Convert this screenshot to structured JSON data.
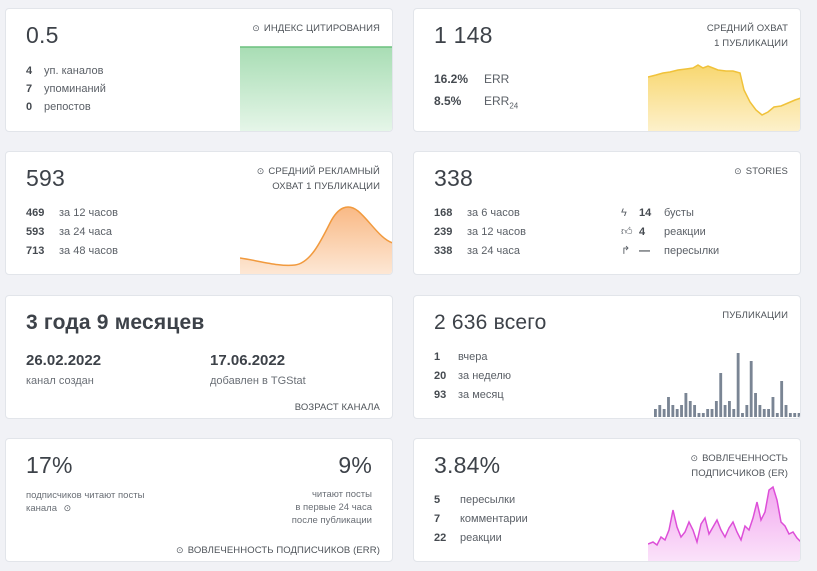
{
  "citation": {
    "value": "0.5",
    "label": "ИНДЕКС ЦИТИРОВАНИЯ",
    "rows": [
      {
        "num": "4",
        "text": "уп. каналов"
      },
      {
        "num": "7",
        "text": "упоминаний"
      },
      {
        "num": "0",
        "text": "репостов"
      }
    ],
    "colors": {
      "fill": "#c9eccf",
      "line": "#6cc17e"
    }
  },
  "avg_reach": {
    "value": "1 148",
    "label_line1": "СРЕДНИЙ ОХВАТ",
    "label_line2": "1 ПУБЛИКАЦИИ",
    "rows": [
      {
        "num": "16.2%",
        "text": "ERR",
        "sub": ""
      },
      {
        "num": "8.5%",
        "text": "ERR",
        "sub": "24"
      }
    ],
    "colors": {
      "fill": "#fbe6a0",
      "line": "#f0c23a"
    }
  },
  "ad_reach": {
    "value": "593",
    "label_line1": "СРЕДНИЙ РЕКЛАМНЫЙ",
    "label_line2": "ОХВАТ 1 ПУБЛИКАЦИИ",
    "rows": [
      {
        "num": "469",
        "text": "за 12 часов"
      },
      {
        "num": "593",
        "text": "за 24 часа"
      },
      {
        "num": "713",
        "text": "за 48 часов"
      }
    ],
    "colors": {
      "fill": "#fcd9b8",
      "line": "#f19a3e"
    }
  },
  "stories": {
    "value": "338",
    "label": "STORIES",
    "rows": [
      {
        "num": "168",
        "text": "за 6 часов"
      },
      {
        "num": "239",
        "text": "за 12 часов"
      },
      {
        "num": "338",
        "text": "за 24 часа"
      }
    ],
    "right_rows": [
      {
        "icon": "boost-icon",
        "num": "14",
        "text": "бусты"
      },
      {
        "icon": "like-icon",
        "num": "4",
        "text": "реакции"
      },
      {
        "icon": "forward-icon",
        "num": "—",
        "text": "пересылки"
      }
    ]
  },
  "age": {
    "value": "3 года 9 месяцев",
    "created_date": "26.02.2022",
    "created_label": "канал создан",
    "added_date": "17.06.2022",
    "added_label": "добавлен в TGStat",
    "label": "ВОЗРАСТ КАНАЛА"
  },
  "posts": {
    "value": "2 636 всего",
    "label": "ПУБЛИКАЦИИ",
    "rows": [
      {
        "num": "1",
        "text": "вчера"
      },
      {
        "num": "20",
        "text": "за неделю"
      },
      {
        "num": "93",
        "text": "за месяц"
      }
    ],
    "bars": [
      2,
      3,
      2,
      5,
      3,
      2,
      3,
      6,
      4,
      3,
      1,
      1,
      2,
      2,
      4,
      11,
      3,
      4,
      2,
      16,
      1,
      3,
      14,
      6,
      3,
      2,
      2,
      5,
      1,
      9,
      3,
      1,
      1,
      1
    ],
    "colors": {
      "bar": "#7a8594"
    }
  },
  "err_block": {
    "left_value": "17%",
    "left_text_1": "подписчиков читают посты",
    "left_text_2": "канала",
    "right_value": "9%",
    "right_text_1": "читают посты",
    "right_text_2": "в первые 24 часа",
    "right_text_3": "после публикации",
    "label": "ВОВЛЕЧЕННОСТЬ ПОДПИСЧИКОВ (ERR)"
  },
  "er_block": {
    "value": "3.84%",
    "label_line1": "ВОВЛЕЧЕННОСТЬ",
    "label_line2": "ПОДПИСЧИКОВ (ER)",
    "rows": [
      {
        "num": "5",
        "text": "пересылки"
      },
      {
        "num": "7",
        "text": "комментарии"
      },
      {
        "num": "22",
        "text": "реакции"
      }
    ],
    "colors": {
      "fill": "#f6c6f4",
      "line": "#dd4fd8"
    }
  }
}
